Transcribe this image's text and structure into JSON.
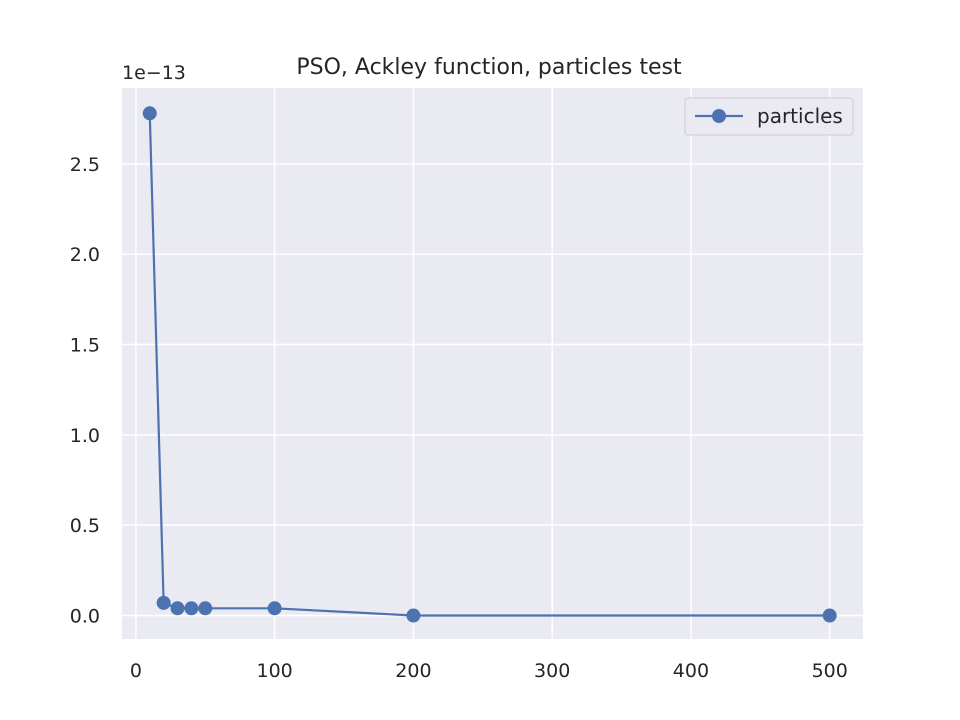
{
  "chart_data": {
    "type": "line",
    "title": "PSO, Ackley function, particles test",
    "xlabel": "",
    "ylabel": "",
    "y_offset_label": "1e−13",
    "series": [
      {
        "name": "particles",
        "x": [
          10,
          20,
          30,
          40,
          50,
          100,
          200,
          500
        ],
        "y": [
          2.78e-13,
          7e-15,
          4e-15,
          4e-15,
          4e-15,
          4e-15,
          0.0,
          0.0
        ]
      }
    ],
    "xlim": [
      -10,
      524
    ],
    "ylim": [
      -1.3e-14,
      2.92e-13
    ],
    "x_ticks": [
      {
        "value": 0,
        "label": "0"
      },
      {
        "value": 100,
        "label": "100"
      },
      {
        "value": 200,
        "label": "200"
      },
      {
        "value": 300,
        "label": "300"
      },
      {
        "value": 400,
        "label": "400"
      },
      {
        "value": 500,
        "label": "500"
      }
    ],
    "y_ticks": [
      {
        "value": 0.0,
        "label": "0.0"
      },
      {
        "value": 5e-14,
        "label": "0.5"
      },
      {
        "value": 1e-13,
        "label": "1.0"
      },
      {
        "value": 1.5e-13,
        "label": "1.5"
      },
      {
        "value": 2e-13,
        "label": "2.0"
      },
      {
        "value": 2.5e-13,
        "label": "2.5"
      }
    ],
    "grid": true,
    "legend_position": "upper right",
    "colors": {
      "series": "#4c72b0",
      "plot_background": "#eaeaf2",
      "grid": "#ffffff",
      "text": "#262626"
    }
  }
}
